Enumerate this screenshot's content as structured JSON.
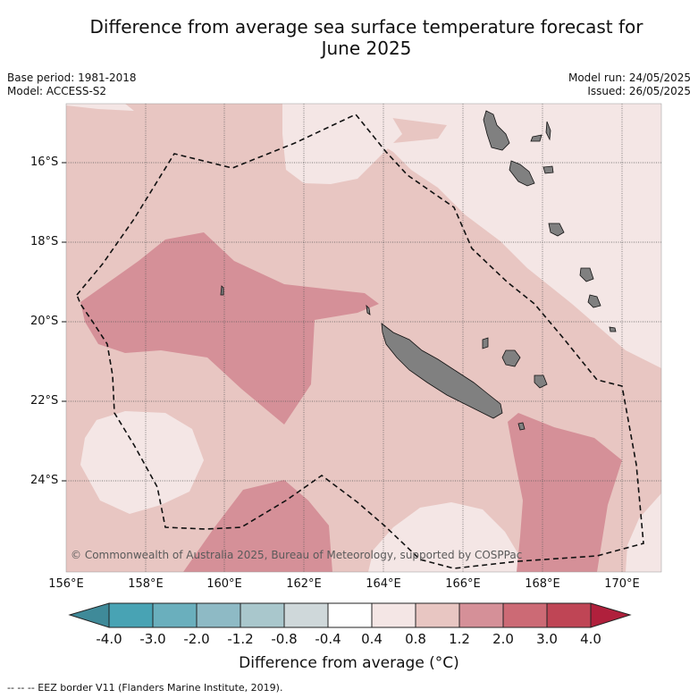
{
  "header": {
    "title_line1": "Difference from average sea surface temperature forecast for",
    "title_line2": "June 2025",
    "base_period": "Base period: 1981-2018",
    "model": "Model: ACCESS-S2",
    "model_run": "Model run: 24/05/2025",
    "issued": "Issued: 26/05/2025"
  },
  "map": {
    "lat_labels": [
      "16°S",
      "18°S",
      "20°S",
      "22°S",
      "24°S"
    ],
    "lon_labels": [
      "156°E",
      "158°E",
      "160°E",
      "162°E",
      "164°E",
      "166°E",
      "168°E",
      "170°E"
    ],
    "copyright": "© Commonwealth of Australia 2025, Bureau of Meteorology, supported by COSPPac",
    "colors": {
      "class_0.4_0.8": "#f4e6e5",
      "class_0.8_1.2": "#e8c6c2",
      "class_1.2_2.0": "#d59098",
      "land": "#808080"
    }
  },
  "colorbar": {
    "tick_labels": [
      "-4.0",
      "-3.0",
      "-2.0",
      "-1.2",
      "-0.8",
      "-0.4",
      "0.4",
      "0.8",
      "1.2",
      "2.0",
      "3.0",
      "4.0"
    ],
    "colors": [
      "#3f8a99",
      "#48a3b4",
      "#6aafbd",
      "#8ebac5",
      "#a9c7cc",
      "#cfd8da",
      "#ffffff",
      "#f4e6e5",
      "#e8c6c2",
      "#d59098",
      "#cc6a75",
      "#bf4555",
      "#b0203c"
    ],
    "title": "Difference from average (°C)"
  },
  "footer": {
    "legend": "--  --  -- EEZ border V11 (Flanders Marine Institute, 2019)."
  }
}
